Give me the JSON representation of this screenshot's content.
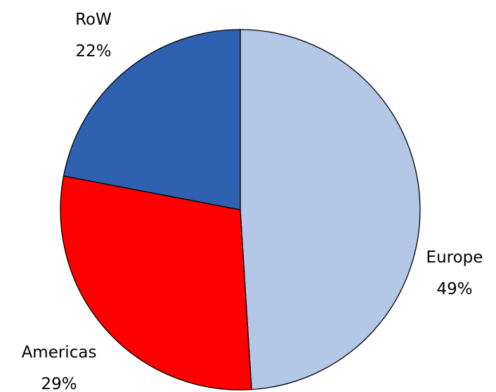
{
  "chart_data": {
    "type": "pie",
    "title": "",
    "slices": [
      {
        "label": "Europe",
        "value": 49,
        "percent_label": "49%",
        "color": "#b4c7e7"
      },
      {
        "label": "Americas",
        "value": 29,
        "percent_label": "29%",
        "color": "#ff0000"
      },
      {
        "label": "RoW",
        "value": 22,
        "percent_label": "22%",
        "color": "#2e62b1"
      }
    ],
    "start": "12 o'clock",
    "direction": "clockwise",
    "labels_outside": true,
    "legend": "none"
  }
}
